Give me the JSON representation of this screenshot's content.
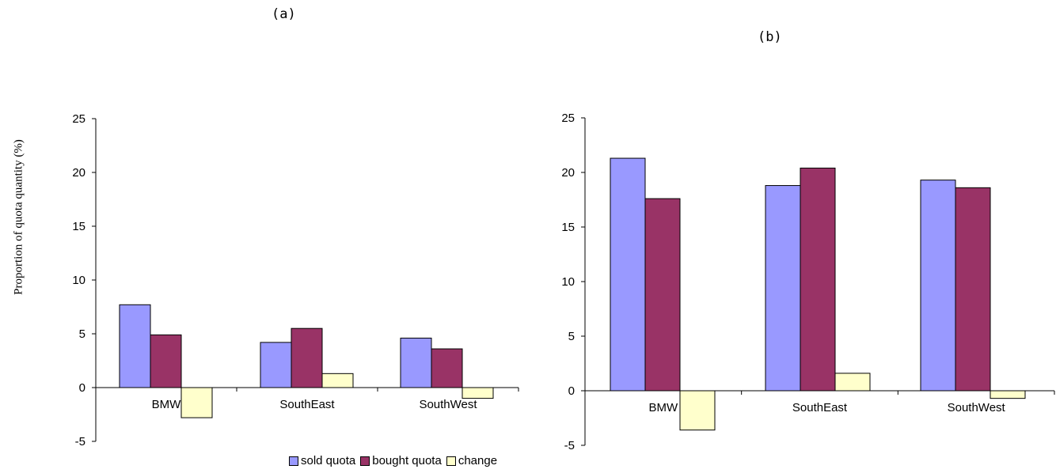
{
  "colors": {
    "sold": "#9999ff",
    "bought": "#993366",
    "change": "#ffffcc"
  },
  "ylabel": "Proportion of quota quantity (%)",
  "legend": [
    {
      "label": "sold quota",
      "color": "#9999ff"
    },
    {
      "label": "bought quota",
      "color": "#993366"
    },
    {
      "label": "change",
      "color": "#ffffcc"
    }
  ],
  "chart_data": [
    {
      "type": "bar",
      "title": "(a)",
      "categories": [
        "BMW",
        "SouthEast",
        "SouthWest"
      ],
      "series": [
        {
          "name": "sold quota",
          "values": [
            7.7,
            4.2,
            4.6
          ]
        },
        {
          "name": "bought quota",
          "values": [
            4.9,
            5.5,
            3.6
          ]
        },
        {
          "name": "change",
          "values": [
            -2.8,
            1.3,
            -1.0
          ]
        }
      ],
      "ylim": [
        -5,
        25
      ],
      "yticks": [
        -5,
        0,
        5,
        10,
        15,
        20,
        25
      ],
      "ylabel": "Proportion of quota quantity (%)",
      "legend_position": "bottom"
    },
    {
      "type": "bar",
      "title": "(b)",
      "categories": [
        "BMW",
        "SouthEast",
        "SouthWest"
      ],
      "series": [
        {
          "name": "sold quota",
          "values": [
            21.3,
            18.8,
            19.3
          ]
        },
        {
          "name": "bought quota",
          "values": [
            17.6,
            20.4,
            18.6
          ]
        },
        {
          "name": "change",
          "values": [
            -3.6,
            1.6,
            -0.7
          ]
        }
      ],
      "ylim": [
        -5,
        25
      ],
      "yticks": [
        -5,
        0,
        5,
        10,
        15,
        20,
        25
      ]
    }
  ]
}
